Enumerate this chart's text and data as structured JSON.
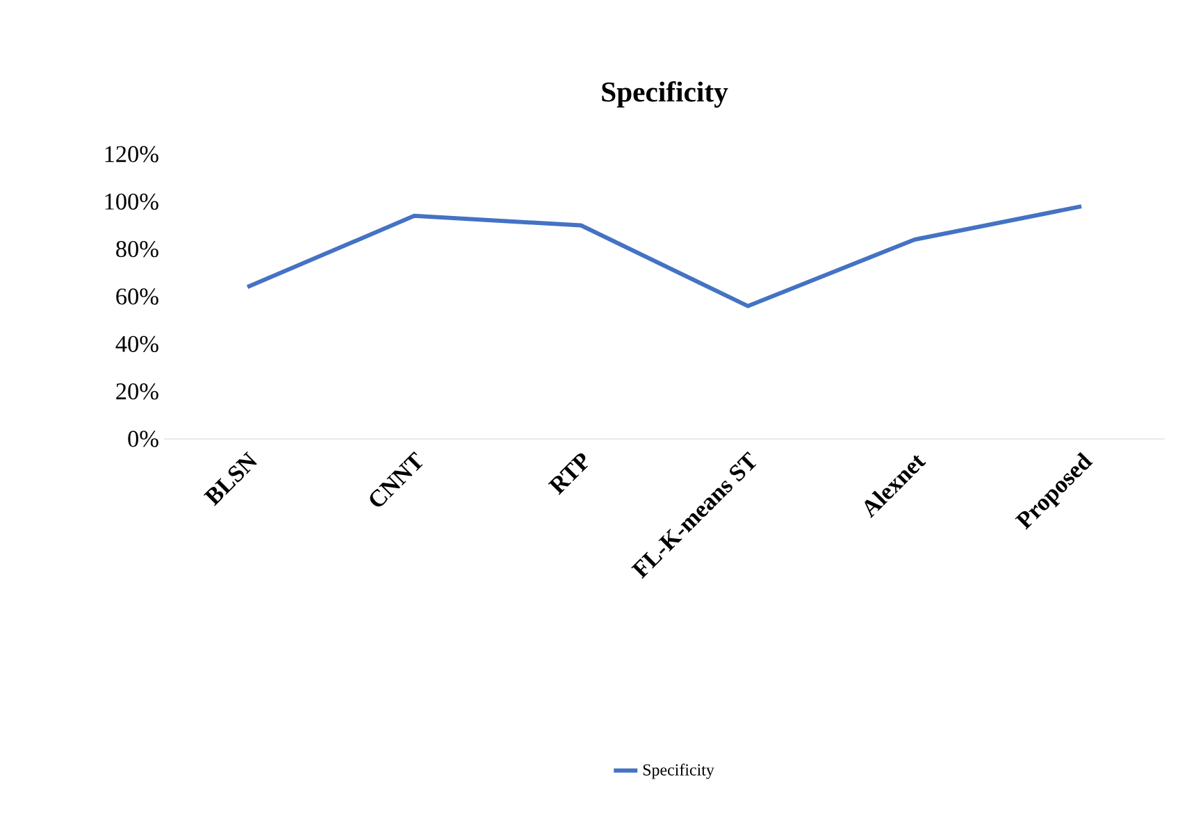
{
  "chart_data": {
    "type": "line",
    "title": "Specificity",
    "categories": [
      "BLSN",
      "CNNT",
      "RTP",
      "FL-K-means ST",
      "Alexnet",
      "Proposed"
    ],
    "series": [
      {
        "name": "Specificity",
        "color": "#4472c4",
        "values": [
          64,
          94,
          90,
          56,
          84,
          98
        ]
      }
    ],
    "ylim": [
      0,
      120
    ],
    "yticks": [
      {
        "value": 0,
        "label": "0%"
      },
      {
        "value": 20,
        "label": "20%"
      },
      {
        "value": 40,
        "label": "40%"
      },
      {
        "value": 60,
        "label": "60%"
      },
      {
        "value": 80,
        "label": "80%"
      },
      {
        "value": 100,
        "label": "100%"
      },
      {
        "value": 120,
        "label": "120%"
      }
    ],
    "legend": "bottom",
    "grid": false,
    "marker": "none",
    "line_style": "solid"
  }
}
